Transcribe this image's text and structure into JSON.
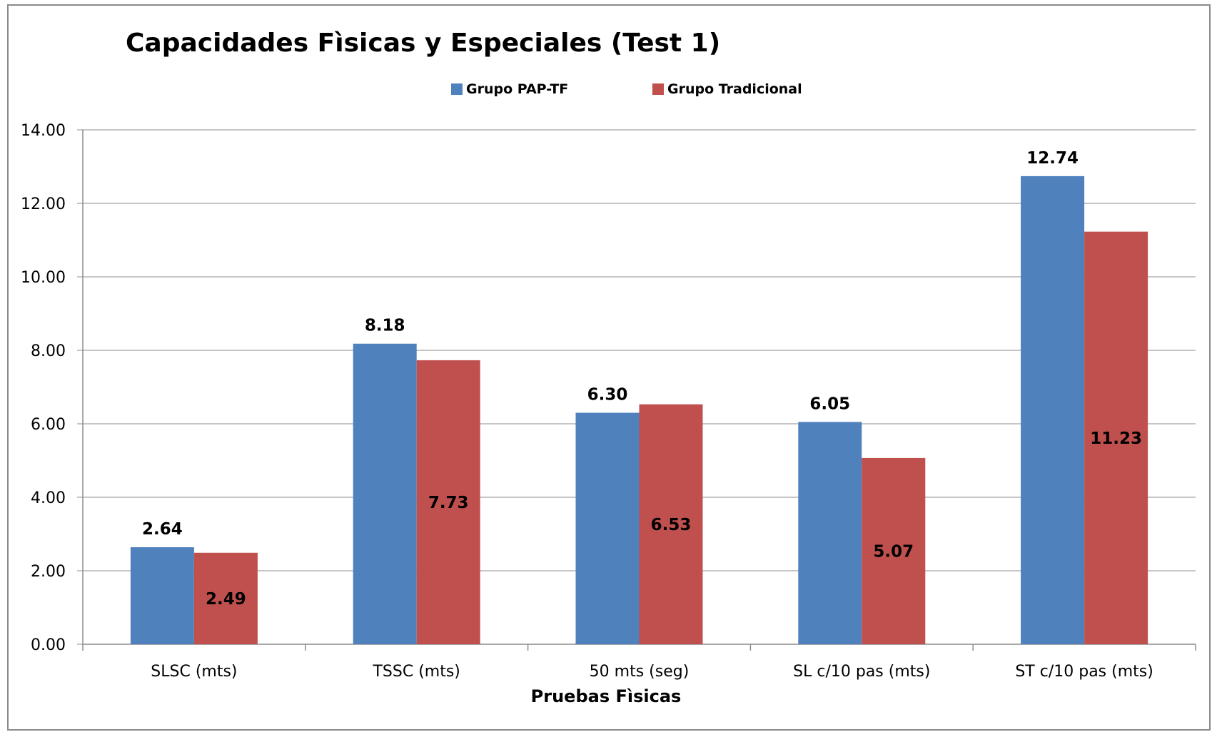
{
  "chart_data": {
    "type": "bar",
    "title": "Capacidades Fìsicas y Especiales (Test 1)",
    "xlabel": "Pruebas Fìsicas",
    "ylabel": "",
    "categories": [
      "SLSC (mts)",
      "TSSC (mts)",
      "50 mts (seg)",
      "SL c/10 pas (mts)",
      "ST c/10 pas (mts)"
    ],
    "series": [
      {
        "name": "Grupo PAP-TF",
        "values": [
          2.64,
          8.18,
          6.3,
          6.05,
          12.74
        ],
        "color": "#4f81bd",
        "labels": [
          "2.64",
          "8.18",
          "6.30",
          "6.05",
          "12.74"
        ]
      },
      {
        "name": "Grupo Tradicional",
        "values": [
          2.49,
          7.73,
          6.53,
          5.07,
          11.23
        ],
        "color": "#c0504d",
        "labels": [
          "2.49",
          "7.73",
          "6.53",
          "5.07",
          "11.23"
        ]
      }
    ],
    "ylim": [
      0,
      14
    ],
    "yticks": [
      "0.00",
      "2.00",
      "4.00",
      "6.00",
      "8.00",
      "10.00",
      "12.00",
      "14.00"
    ],
    "grid": true,
    "legend_position": "top"
  }
}
